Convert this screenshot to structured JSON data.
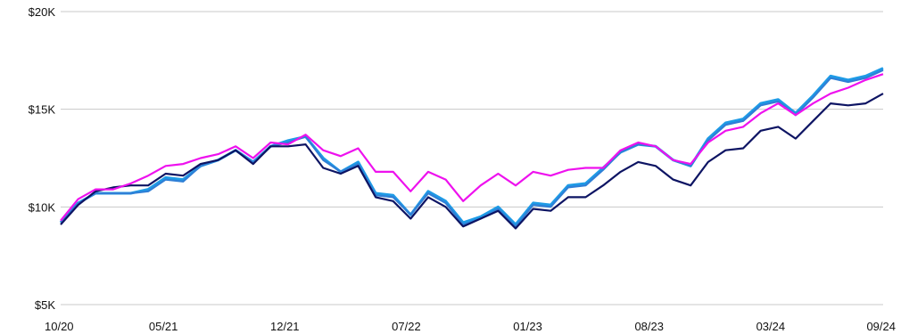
{
  "chart_data": {
    "type": "line",
    "title": "",
    "xlabel": "",
    "ylabel": "",
    "ylim": [
      5000,
      20000
    ],
    "grid": "horizontal",
    "x_tick_labels": [
      "10/20",
      "05/21",
      "12/21",
      "07/22",
      "01/23",
      "08/23",
      "03/24",
      "09/24"
    ],
    "y_tick_labels": [
      "$20K",
      "$15K",
      "$10K",
      "$5K"
    ],
    "y_tick_values": [
      20000,
      15000,
      10000,
      5000
    ],
    "series": [
      {
        "color": "#1e9be6",
        "values": [
          9200,
          10200,
          10700,
          10700,
          10700,
          10900,
          11500,
          11400,
          12100,
          12400,
          12900,
          12300,
          13100,
          13400,
          13600,
          12500,
          11800,
          12300,
          10700,
          10600,
          9600,
          10800,
          10300,
          9200,
          9500,
          10000,
          9100,
          10200,
          10100,
          11100,
          11200,
          12000,
          12800,
          13200,
          13100,
          12400,
          12100,
          13500,
          14300,
          14500,
          15300,
          15500,
          14800,
          15700,
          16700,
          16500,
          16700,
          17100
        ]
      },
      {
        "color": "#2f7fd6",
        "values": [
          9200,
          10200,
          10700,
          10700,
          10700,
          10800,
          11400,
          11300,
          12100,
          12400,
          12900,
          12300,
          13100,
          13300,
          13600,
          12400,
          11800,
          12200,
          10600,
          10500,
          9600,
          10700,
          10200,
          9100,
          9400,
          9900,
          9000,
          10100,
          10000,
          11000,
          11100,
          11900,
          12800,
          13200,
          13100,
          12400,
          12100,
          13400,
          14200,
          14400,
          15200,
          15400,
          14700,
          15600,
          16600,
          16400,
          16600,
          17000
        ]
      },
      {
        "color": "#0d1463",
        "values": [
          9100,
          10100,
          10800,
          11000,
          11100,
          11100,
          11700,
          11600,
          12200,
          12400,
          12900,
          12200,
          13100,
          13100,
          13200,
          12000,
          11700,
          12100,
          10500,
          10300,
          9400,
          10500,
          10000,
          9000,
          9400,
          9800,
          8900,
          9900,
          9800,
          10500,
          10500,
          11100,
          11800,
          12300,
          12100,
          11400,
          11100,
          12300,
          12900,
          13000,
          13900,
          14100,
          13500,
          14400,
          15300,
          15200,
          15300,
          15800
        ]
      },
      {
        "color": "#ee11ee",
        "values": [
          9300,
          10400,
          10900,
          10900,
          11200,
          11600,
          12100,
          12200,
          12500,
          12700,
          13100,
          12500,
          13300,
          13200,
          13700,
          12900,
          12600,
          13000,
          11800,
          11800,
          10800,
          11800,
          11400,
          10300,
          11100,
          11700,
          11100,
          11800,
          11600,
          11900,
          12000,
          12000,
          12900,
          13300,
          13100,
          12400,
          12200,
          13300,
          13900,
          14100,
          14800,
          15300,
          14700,
          15300,
          15800,
          16100,
          16500,
          16800
        ]
      }
    ]
  }
}
